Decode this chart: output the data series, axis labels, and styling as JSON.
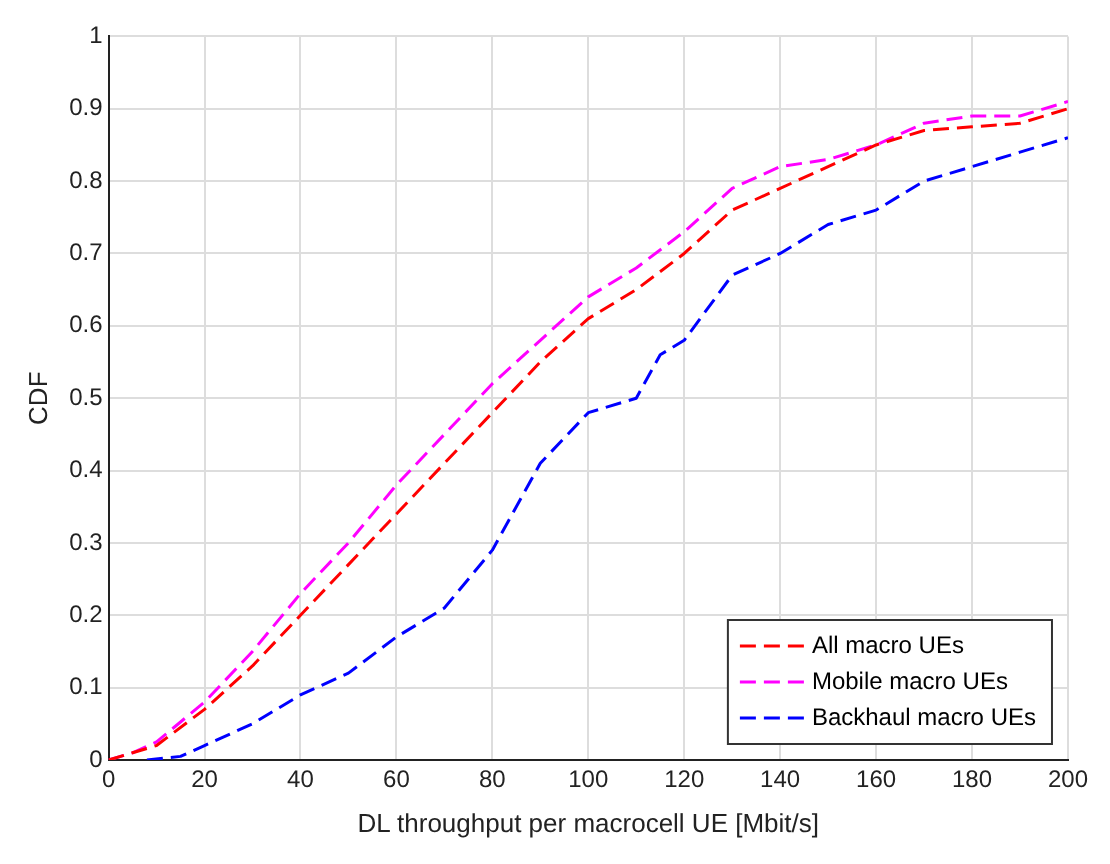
{
  "chart_data": {
    "type": "line",
    "xlabel": "DL throughput per macrocell UE [Mbit/s]",
    "ylabel": "CDF",
    "xlim": [
      0,
      200
    ],
    "xticks": [
      0,
      20,
      40,
      60,
      80,
      100,
      120,
      140,
      160,
      180,
      200
    ],
    "ylim": [
      0,
      1
    ],
    "yticks": [
      0,
      0.1,
      0.2,
      0.3,
      0.4,
      0.5,
      0.6,
      0.7,
      0.8,
      0.9,
      1
    ],
    "grid": true,
    "legend": "bottom right",
    "line_style": "dashed",
    "marker": "none",
    "series": [
      {
        "name": "All macro UEs",
        "color": "#ff0000",
        "x": [
          0,
          5,
          10,
          20,
          30,
          40,
          50,
          60,
          70,
          80,
          90,
          100,
          110,
          120,
          130,
          140,
          150,
          160,
          170,
          180,
          190,
          200
        ],
        "values": [
          0,
          0.01,
          0.02,
          0.07,
          0.13,
          0.2,
          0.27,
          0.34,
          0.41,
          0.48,
          0.55,
          0.61,
          0.65,
          0.7,
          0.76,
          0.79,
          0.82,
          0.85,
          0.87,
          0.875,
          0.88,
          0.9
        ]
      },
      {
        "name": "Mobile macro UEs",
        "color": "#ff00ff",
        "x": [
          0,
          5,
          10,
          20,
          30,
          40,
          50,
          60,
          70,
          80,
          90,
          100,
          110,
          120,
          130,
          140,
          150,
          160,
          170,
          180,
          190,
          200
        ],
        "values": [
          0,
          0.01,
          0.025,
          0.08,
          0.15,
          0.23,
          0.3,
          0.38,
          0.45,
          0.52,
          0.58,
          0.64,
          0.68,
          0.73,
          0.79,
          0.82,
          0.83,
          0.85,
          0.88,
          0.89,
          0.89,
          0.91
        ]
      },
      {
        "name": "Backhaul macro UEs",
        "color": "#0000ff",
        "x": [
          8,
          15,
          20,
          30,
          40,
          50,
          60,
          70,
          80,
          90,
          100,
          110,
          115,
          120,
          130,
          140,
          150,
          160,
          170,
          180,
          190,
          200
        ],
        "values": [
          0,
          0.005,
          0.02,
          0.05,
          0.09,
          0.12,
          0.17,
          0.21,
          0.29,
          0.41,
          0.48,
          0.5,
          0.56,
          0.58,
          0.67,
          0.7,
          0.74,
          0.76,
          0.8,
          0.82,
          0.84,
          0.86
        ]
      }
    ]
  }
}
